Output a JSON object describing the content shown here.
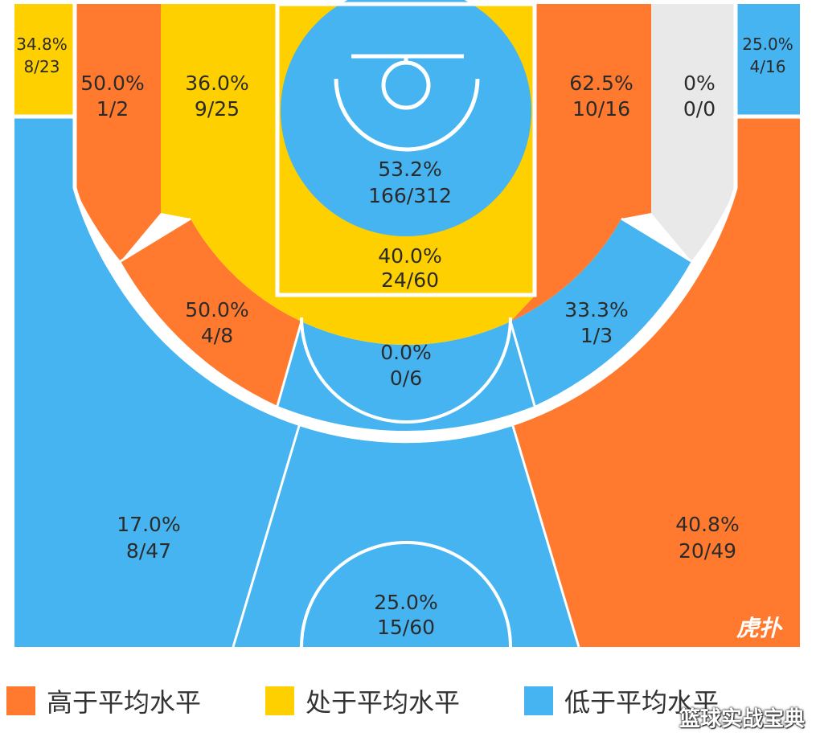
{
  "colors": {
    "above": "#FF7A2F",
    "average": "#FFD000",
    "below": "#46B4F0",
    "none": "#E9E9E9",
    "line": "#ffffff"
  },
  "chart_data": {
    "type": "shot-zone-map",
    "zones": [
      {
        "id": "left-corner-three",
        "pct": "34.8%",
        "frac": "8/23",
        "level": "average"
      },
      {
        "id": "left-baseline-long-two",
        "pct": "50.0%",
        "frac": "1/2",
        "level": "above"
      },
      {
        "id": "left-short-mid",
        "pct": "36.0%",
        "frac": "9/25",
        "level": "average"
      },
      {
        "id": "restricted-area",
        "pct": "53.2%",
        "frac": "166/312",
        "level": "below"
      },
      {
        "id": "right-short-mid",
        "pct": "62.5%",
        "frac": "10/16",
        "level": "above"
      },
      {
        "id": "right-baseline-long-two",
        "pct": "0%",
        "frac": "0/0",
        "level": "none"
      },
      {
        "id": "right-corner-three",
        "pct": "25.0%",
        "frac": "4/16",
        "level": "below"
      },
      {
        "id": "paint-non-ra",
        "pct": "40.0%",
        "frac": "24/60",
        "level": "average"
      },
      {
        "id": "left-wing-long-two",
        "pct": "50.0%",
        "frac": "4/8",
        "level": "above"
      },
      {
        "id": "top-key-long-two",
        "pct": "0.0%",
        "frac": "0/6",
        "level": "below"
      },
      {
        "id": "right-wing-long-two",
        "pct": "33.3%",
        "frac": "1/3",
        "level": "below"
      },
      {
        "id": "left-wing-three",
        "pct": "17.0%",
        "frac": "8/47",
        "level": "below"
      },
      {
        "id": "top-three",
        "pct": "25.0%",
        "frac": "15/60",
        "level": "below"
      },
      {
        "id": "right-wing-three",
        "pct": "40.8%",
        "frac": "20/49",
        "level": "above"
      }
    ]
  },
  "legend": [
    {
      "level": "above",
      "label": "高于平均水平"
    },
    {
      "level": "average",
      "label": "处于平均水平"
    },
    {
      "level": "below",
      "label": "低于平均水平"
    }
  ],
  "logo_text": "虎扑",
  "watermark": "篮球实战宝典"
}
